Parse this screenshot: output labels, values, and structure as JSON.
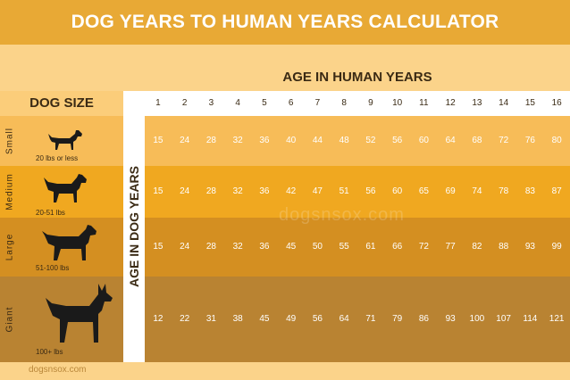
{
  "title": "DOG YEARS TO HUMAN YEARS CALCULATOR",
  "human_label": "AGE IN HUMAN YEARS",
  "size_label": "DOG SIZE",
  "dog_years_label": "AGE IN DOG YEARS",
  "ages": [
    "1",
    "2",
    "3",
    "4",
    "5",
    "6",
    "7",
    "8",
    "9",
    "10",
    "11",
    "12",
    "13",
    "14",
    "15",
    "16"
  ],
  "rows": [
    {
      "name": "Small",
      "weight": "20 lbs or less",
      "values": [
        "15",
        "24",
        "28",
        "32",
        "36",
        "40",
        "44",
        "48",
        "52",
        "56",
        "60",
        "64",
        "68",
        "72",
        "76",
        "80"
      ],
      "color": "#f7bc58"
    },
    {
      "name": "Medium",
      "weight": "20-51 lbs",
      "values": [
        "15",
        "24",
        "28",
        "32",
        "36",
        "42",
        "47",
        "51",
        "56",
        "60",
        "65",
        "69",
        "74",
        "78",
        "83",
        "87"
      ],
      "color": "#f0a820"
    },
    {
      "name": "Large",
      "weight": "51-100 lbs",
      "values": [
        "15",
        "24",
        "28",
        "32",
        "36",
        "45",
        "50",
        "55",
        "61",
        "66",
        "72",
        "77",
        "82",
        "88",
        "93",
        "99"
      ],
      "color": "#d48f21"
    },
    {
      "name": "Giant",
      "weight": "100+ lbs",
      "values": [
        "12",
        "22",
        "31",
        "38",
        "45",
        "49",
        "56",
        "64",
        "71",
        "79",
        "86",
        "93",
        "100",
        "107",
        "114",
        "121"
      ],
      "color": "#b98332"
    }
  ],
  "watermark": "dogsnsox.com",
  "footer": "dogsnsox.com"
}
